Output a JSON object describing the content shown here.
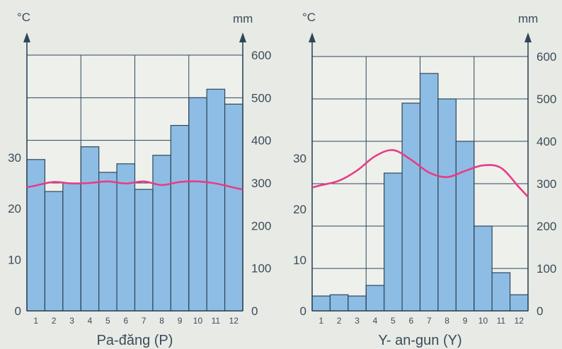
{
  "chart_data": [
    {
      "type": "bar",
      "title": "Pa-đăng (P)",
      "left_unit": "°C",
      "right_unit": "mm",
      "categories": [
        "1",
        "2",
        "3",
        "4",
        "5",
        "6",
        "7",
        "8",
        "9",
        "10",
        "11",
        "12"
      ],
      "temp_ticks": [
        "0",
        "10",
        "20",
        "30"
      ],
      "rain_ticks": [
        "0",
        "100",
        "200",
        "300",
        "400",
        "500",
        "600"
      ],
      "temp_range": [
        0,
        50
      ],
      "rain_range": [
        0,
        600
      ],
      "series": [
        {
          "name": "",
          "kind": "bar",
          "axis": "right",
          "values": [
            355,
            280,
            300,
            385,
            325,
            345,
            285,
            365,
            435,
            500,
            520,
            485
          ]
        },
        {
          "name": "",
          "kind": "line",
          "axis": "left",
          "values": [
            24.5,
            25.2,
            24.9,
            25.0,
            25.3,
            24.9,
            25.3,
            24.6,
            25.2,
            25.3,
            24.9,
            24.1
          ]
        }
      ],
      "grid": true,
      "colors": {
        "bar": "#8dbde5",
        "bar_edge": "#2f4658",
        "line": "#e83c86",
        "grid": "#2f4658"
      }
    },
    {
      "type": "bar",
      "title": "Y- an-gun (Y)",
      "left_unit": "°C",
      "right_unit": "mm",
      "categories": [
        "1",
        "2",
        "3",
        "4",
        "5",
        "6",
        "7",
        "8",
        "9",
        "10",
        "11",
        "12"
      ],
      "temp_ticks": [
        "0",
        "10",
        "20",
        "30"
      ],
      "rain_ticks": [
        "0",
        "100",
        "200",
        "300",
        "400",
        "500",
        "600"
      ],
      "temp_range": [
        0,
        50
      ],
      "rain_range": [
        0,
        600
      ],
      "series": [
        {
          "name": "",
          "kind": "bar",
          "axis": "right",
          "values": [
            35,
            38,
            35,
            60,
            325,
            490,
            560,
            500,
            400,
            200,
            90,
            38
          ]
        },
        {
          "name": "",
          "kind": "line",
          "axis": "left",
          "values": [
            24.7,
            25.6,
            27.6,
            30.4,
            31.6,
            29.7,
            27.2,
            26.3,
            27.5,
            28.6,
            28.1,
            24.3
          ]
        }
      ],
      "grid": true,
      "colors": {
        "bar": "#8dbde5",
        "bar_edge": "#2f4658",
        "line": "#e83c86",
        "grid": "#2f4658"
      }
    }
  ]
}
